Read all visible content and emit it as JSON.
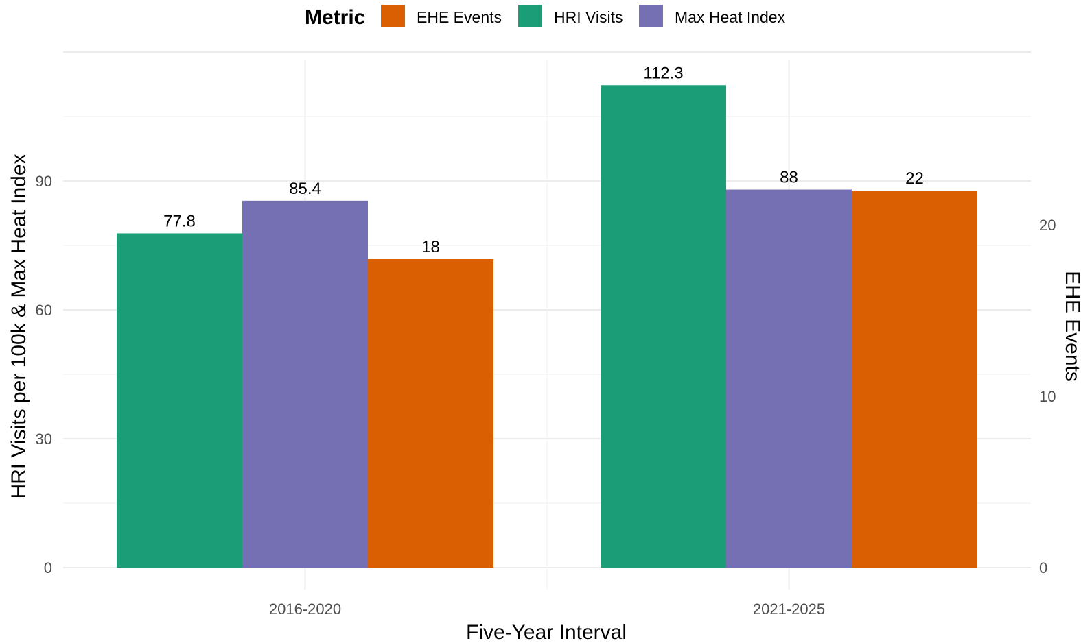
{
  "chart_data": {
    "type": "bar",
    "categories": [
      "2016-2020",
      "2021-2025"
    ],
    "xlabel": "Five-Year Interval",
    "ylabel": "HRI Visits per 100k & Max Heat Index",
    "ylabel_right": "EHE Events",
    "ylim": [
      0,
      120
    ],
    "ylim_right": [
      0,
      30
    ],
    "y_ticks": [
      0,
      30,
      60,
      90
    ],
    "y_ticks_right": [
      0,
      10,
      20
    ],
    "grid": true,
    "legend": {
      "title": "Metric",
      "placement": "top",
      "entries": [
        {
          "name": "EHE Events",
          "color": "#D95F02"
        },
        {
          "name": "HRI Visits",
          "color": "#1B9E77"
        },
        {
          "name": "Max Heat Index",
          "color": "#7570B3"
        }
      ]
    },
    "series": [
      {
        "name": "HRI Visits",
        "axis": "left",
        "color": "#1B9E77",
        "values": [
          77.8,
          112.3
        ],
        "labels": [
          "77.8",
          "112.3"
        ]
      },
      {
        "name": "Max Heat Index",
        "axis": "left",
        "color": "#7570B3",
        "values": [
          85.4,
          88
        ],
        "labels": [
          "85.4",
          "88"
        ]
      },
      {
        "name": "EHE Events",
        "axis": "right",
        "color": "#D95F02",
        "values": [
          18,
          22
        ],
        "labels": [
          "18",
          "22"
        ]
      }
    ]
  }
}
